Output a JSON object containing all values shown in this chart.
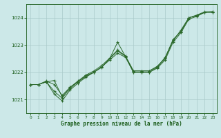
{
  "xlabel": "Graphe pression niveau de la mer (hPa)",
  "x": [
    0,
    1,
    2,
    3,
    4,
    5,
    6,
    7,
    8,
    9,
    10,
    11,
    12,
    13,
    14,
    15,
    16,
    17,
    18,
    19,
    20,
    21,
    22,
    23
  ],
  "line1": [
    1021.55,
    1021.55,
    1021.65,
    1021.7,
    1021.1,
    1021.45,
    1021.65,
    1021.85,
    1022.0,
    1022.2,
    1022.45,
    1022.7,
    1022.55,
    1022.0,
    1022.0,
    1022.0,
    1022.15,
    1022.45,
    1023.1,
    1023.45,
    1023.95,
    1024.05,
    1024.2,
    1024.2
  ],
  "line2": [
    1021.55,
    1021.55,
    1021.65,
    1021.2,
    1020.95,
    1021.35,
    1021.6,
    1021.82,
    1022.0,
    1022.18,
    1022.5,
    1023.1,
    1022.58,
    1022.0,
    1022.0,
    1022.0,
    1022.18,
    1022.55,
    1023.15,
    1023.55,
    1024.0,
    1024.08,
    1024.2,
    1024.22
  ],
  "line3": [
    1021.55,
    1021.55,
    1021.65,
    1021.3,
    1021.05,
    1021.4,
    1021.65,
    1021.88,
    1022.0,
    1022.2,
    1022.5,
    1022.78,
    1022.58,
    1022.05,
    1022.05,
    1022.05,
    1022.2,
    1022.5,
    1023.18,
    1023.5,
    1024.0,
    1024.08,
    1024.2,
    1024.2
  ],
  "line4": [
    1021.55,
    1021.55,
    1021.68,
    1021.55,
    1021.15,
    1021.45,
    1021.68,
    1021.9,
    1022.05,
    1022.25,
    1022.52,
    1022.82,
    1022.6,
    1022.05,
    1022.05,
    1022.05,
    1022.22,
    1022.52,
    1023.2,
    1023.5,
    1024.0,
    1024.1,
    1024.22,
    1024.22
  ],
  "bg_color": "#cce8e8",
  "line_color": "#2d6a2d",
  "grid_color": "#aacaca",
  "ylim_min": 1020.5,
  "ylim_max": 1024.5,
  "ytick_labels": [
    "1021",
    "1022",
    "1023",
    "1024"
  ],
  "ytick_vals": [
    1021,
    1022,
    1023,
    1024
  ],
  "xtick_vals": [
    0,
    1,
    2,
    3,
    4,
    5,
    6,
    7,
    8,
    9,
    10,
    11,
    12,
    13,
    14,
    15,
    16,
    17,
    18,
    19,
    20,
    21,
    22,
    23
  ],
  "label_color": "#1a5c1a",
  "spine_color": "#1a5c1a"
}
